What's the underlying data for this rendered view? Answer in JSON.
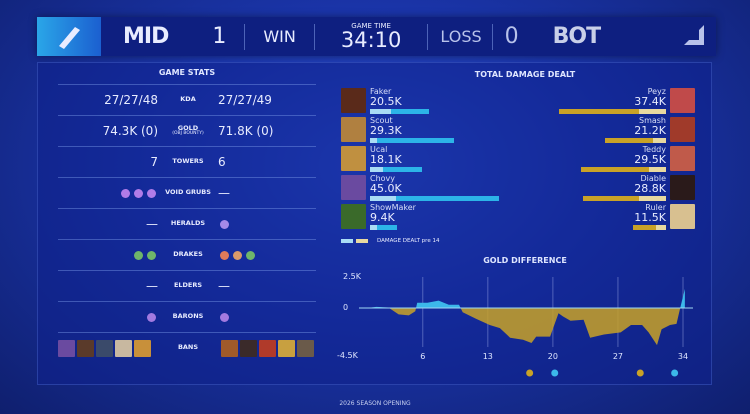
{
  "header": {
    "left_team": "MID",
    "left_score": "1",
    "left_result": "WIN",
    "game_time_label": "GAME TIME",
    "game_time": "34:10",
    "right_result": "LOSS",
    "right_score": "0",
    "right_team": "BOT",
    "left_icon": "mid-lane-icon",
    "right_icon": "bot-lane-icon"
  },
  "game_stats": {
    "title": "GAME STATS",
    "rows": [
      {
        "label": "KDA",
        "left": "27/27/48",
        "right": "27/27/49"
      },
      {
        "label": "GOLD",
        "sublabel": "(OBJ BOUNTY)",
        "left": "74.3K (0)",
        "right": "71.8K (0)"
      },
      {
        "label": "TOWERS",
        "left": "7",
        "right": "6"
      },
      {
        "label": "VOID GRUBS",
        "left_icons": [
          "void-grub-icon",
          "void-grub-icon",
          "void-grub-icon"
        ],
        "right": "—"
      },
      {
        "label": "HERALDS",
        "left": "—",
        "right_icons": [
          "herald-icon"
        ]
      },
      {
        "label": "DRAKES",
        "left_icons": [
          "chemtech-drake-icon",
          "chemtech-drake-icon"
        ],
        "right_icons": [
          "infernal-drake-icon",
          "mountain-drake-icon",
          "chemtech-drake-icon"
        ]
      },
      {
        "label": "ELDERS",
        "left": "—",
        "right": "—"
      },
      {
        "label": "BARONS",
        "left_icons": [
          "baron-icon"
        ],
        "right_icons": [
          "baron-icon"
        ]
      },
      {
        "label": "BANS",
        "left_bans": 5,
        "right_bans": 5
      }
    ]
  },
  "damage": {
    "title": "TOTAL DAMAGE DEALT",
    "legend": "DAMAGE DEALT pre 14",
    "colors": {
      "left": "#2cb4e8",
      "left_pre": "#a9dcf5",
      "right": "#c9a227",
      "right_pre": "#e8d9a0"
    },
    "left": [
      {
        "name": "Faker",
        "value": "20.5K",
        "k": 20.5,
        "pre14": 7.2
      },
      {
        "name": "Scout",
        "value": "29.3K",
        "k": 29.3,
        "pre14": 2.5
      },
      {
        "name": "Ucal",
        "value": "18.1K",
        "k": 18.1,
        "pre14": 4.5
      },
      {
        "name": "Chovy",
        "value": "45.0K",
        "k": 45.0,
        "pre14": 9.0
      },
      {
        "name": "ShowMaker",
        "value": "9.4K",
        "k": 9.4,
        "pre14": 2.5
      }
    ],
    "right": [
      {
        "name": "Peyz",
        "value": "37.4K",
        "k": 37.4,
        "pre14": 9.5
      },
      {
        "name": "Smash",
        "value": "21.2K",
        "k": 21.2,
        "pre14": 4.5
      },
      {
        "name": "Teddy",
        "value": "29.5K",
        "k": 29.5,
        "pre14": 6.0
      },
      {
        "name": "Diable",
        "value": "28.8K",
        "k": 28.8,
        "pre14": 9.5
      },
      {
        "name": "Ruler",
        "value": "11.5K",
        "k": 11.5,
        "pre14": 3.5
      }
    ]
  },
  "chart_data": {
    "type": "area",
    "title": "GOLD DIFFERENCE",
    "xlabel": "",
    "ylabel": "",
    "x_ticks": [
      "6",
      "13",
      "20",
      "27",
      "34"
    ],
    "y_ticks": [
      "2.5K",
      "0",
      "-4.5K"
    ],
    "ylim": [
      -4.5,
      2.5
    ],
    "xlim": [
      0,
      34
    ],
    "colors": {
      "positive": "#3cb8ea",
      "negative": "#c9a227"
    },
    "series": [
      {
        "x": [
          0,
          1,
          2.3,
          3.4,
          4.5,
          5.2,
          5.4,
          6.5,
          7.7,
          8.8,
          9.9,
          10.3,
          11.7,
          13.2,
          14.3,
          15.4,
          16.8,
          17.7,
          18.2,
          19.7,
          20.6,
          21.1,
          21.9,
          23.3,
          24,
          25.5,
          27.3,
          28.4,
          29.6,
          30.3,
          31.2,
          31.7,
          32.6,
          33.3,
          33.7,
          34.2
        ],
        "y": [
          0,
          0.1,
          0.05,
          -0.6,
          -0.7,
          -0.3,
          0.5,
          0.5,
          0.7,
          0.3,
          0.3,
          -0.4,
          -1.0,
          -1.6,
          -1.9,
          -2.8,
          -3.0,
          -3.3,
          -2.7,
          -2.7,
          -0.5,
          -0.8,
          -1.2,
          -1.1,
          -2.8,
          -2.5,
          -2.3,
          -1.6,
          -1.6,
          -2.3,
          -3.5,
          -2.0,
          -1.6,
          -1.5,
          0,
          1.8
        ]
      }
    ],
    "events": [
      {
        "minute": 17.5,
        "team": "right",
        "icon": "herald-icon"
      },
      {
        "minute": 20.2,
        "team": "left",
        "icon": "baron-icon"
      },
      {
        "minute": 29.4,
        "team": "right",
        "icon": "baron-icon"
      },
      {
        "minute": 33.1,
        "team": "left",
        "icon": "nexus-icon"
      }
    ]
  },
  "footer": "2026 SEASON OPENING"
}
